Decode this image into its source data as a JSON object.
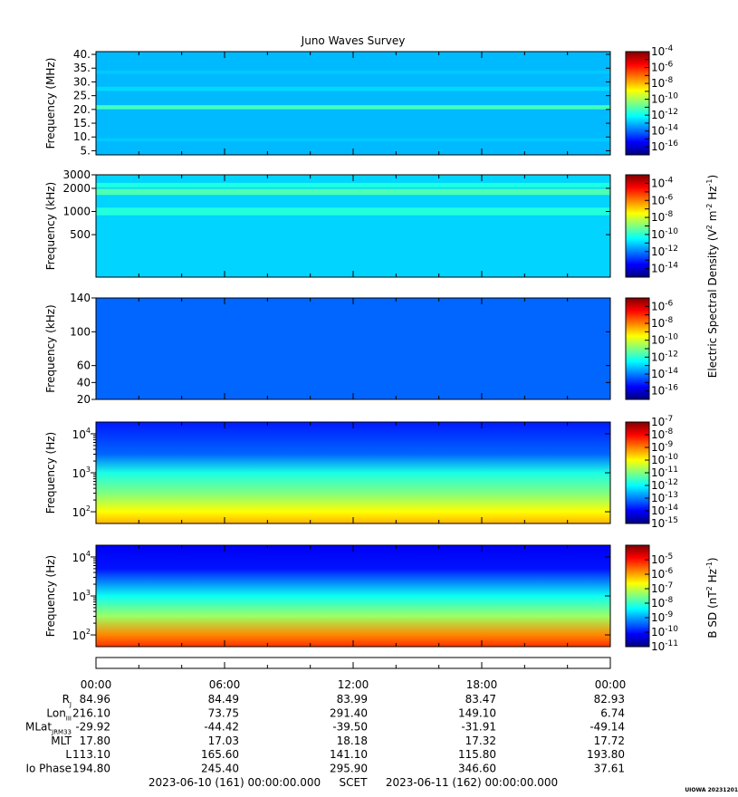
{
  "figure": {
    "title": "Juno Waves Survey",
    "credit": "UIOWA 20231201"
  },
  "chart_data": [
    {
      "type": "heatmap",
      "panel": "1",
      "ylabel": "Frequency (MHz)",
      "ylim": [
        3.5,
        41
      ],
      "yscale": "linear",
      "yticks": [
        5,
        10,
        15,
        20,
        25,
        30,
        35,
        40
      ],
      "ytick_labels": [
        "5.",
        "10.",
        "15.",
        "20.",
        "25.",
        "30.",
        "35.",
        "40."
      ],
      "colorbar": {
        "exponents": [
          -4,
          -6,
          -8,
          -10,
          -12,
          -14,
          -16
        ],
        "cmin": -17,
        "cmax": -4
      },
      "background_log_level": -13,
      "bands": [
        {
          "y": 20.8,
          "width": 1.5,
          "log_level": -11.3
        },
        {
          "y": 27.5,
          "width": 1.5,
          "log_level": -12.6
        },
        {
          "y": 9.0,
          "width": 1.2,
          "log_level": -12.8
        },
        {
          "y": 33.5,
          "width": 1.2,
          "log_level": -12.8
        }
      ]
    },
    {
      "type": "heatmap",
      "panel": "2",
      "ylabel": "Frequency (kHz)",
      "ylim": [
        140,
        3000
      ],
      "yscale": "log",
      "yticks": [
        500,
        1000,
        2000,
        3000
      ],
      "ytick_labels": [
        "500",
        "1000",
        "2000",
        "3000"
      ],
      "colorbar": {
        "exponents": [
          -4,
          -6,
          -8,
          -10,
          -12,
          -14
        ],
        "cmin": -15,
        "cmax": -3
      },
      "background_log_level": -11,
      "bands": [
        {
          "y": 1800,
          "width": 0.04,
          "log_level": -9.6
        },
        {
          "y": 1000,
          "width": 0.05,
          "log_level": -10.1
        },
        {
          "y": 2200,
          "width": 0.03,
          "log_level": -10.2
        }
      ]
    },
    {
      "type": "heatmap",
      "panel": "3",
      "ylabel": "Frequency (kHz)",
      "ylim": [
        20,
        140
      ],
      "yscale": "linear",
      "yticks": [
        20,
        40,
        60,
        100,
        140
      ],
      "ytick_labels": [
        "20",
        "40",
        "60",
        "100",
        "140"
      ],
      "colorbar": {
        "exponents": [
          -6,
          -8,
          -10,
          -12,
          -14,
          -16
        ],
        "cmin": -17,
        "cmax": -5
      },
      "background_log_level": -14.3
    },
    {
      "type": "heatmap",
      "panel": "4",
      "ylabel": "Frequency (Hz)",
      "ylim": [
        50,
        20000
      ],
      "yscale": "log",
      "ytick_labels": [
        {
          "value": 100,
          "base": "10",
          "exp": "2"
        },
        {
          "value": 1000,
          "base": "10",
          "exp": "3"
        },
        {
          "value": 10000,
          "base": "10",
          "exp": "4"
        }
      ],
      "colorbar": {
        "exponents": [
          -7,
          -8,
          -9,
          -10,
          -11,
          -12,
          -13,
          -14,
          -15
        ],
        "cmin": -15,
        "cmax": -7
      },
      "gradient": [
        {
          "f": 20000,
          "log_level": -13.8
        },
        {
          "f": 3000,
          "log_level": -13.2
        },
        {
          "f": 1000,
          "log_level": -11.8
        },
        {
          "f": 300,
          "log_level": -11.0
        },
        {
          "f": 100,
          "log_level": -10.0
        },
        {
          "f": 50,
          "log_level": -9.4
        }
      ]
    },
    {
      "type": "heatmap",
      "panel": "5",
      "ylabel": "Frequency (Hz)",
      "ylim": [
        50,
        20000
      ],
      "yscale": "log",
      "ytick_labels": [
        {
          "value": 100,
          "base": "10",
          "exp": "2"
        },
        {
          "value": 1000,
          "base": "10",
          "exp": "3"
        },
        {
          "value": 10000,
          "base": "10",
          "exp": "4"
        }
      ],
      "colorbar": {
        "label": "B SD (nT",
        "label_exp": "2",
        "label_suffix": " Hz",
        "label_exp2": "-1",
        "label_end": ")",
        "exponents": [
          -5,
          -6,
          -7,
          -8,
          -9,
          -10,
          -11
        ],
        "cmin": -11,
        "cmax": -4
      },
      "gradient": [
        {
          "f": 20000,
          "log_level": -10.2
        },
        {
          "f": 5000,
          "log_level": -10.0
        },
        {
          "f": 1000,
          "log_level": -8.3
        },
        {
          "f": 300,
          "log_level": -7.3
        },
        {
          "f": 100,
          "log_level": -5.8
        },
        {
          "f": 50,
          "log_level": -5.2
        }
      ]
    }
  ],
  "electric_label": {
    "text": "Electric Spectral Density (V",
    "exp1": "2",
    "mid": " m",
    "exp2": "-2",
    "mid2": " Hz",
    "exp3": "-1",
    "end": ")"
  },
  "time_axis": {
    "tick_labels": [
      "00:00",
      "06:00",
      "12:00",
      "18:00",
      "00:00"
    ],
    "hours": [
      0,
      6,
      12,
      18,
      24
    ],
    "minor_step_hours": 2
  },
  "ephemeris": [
    {
      "label": "R",
      "sub": "J",
      "values": [
        "84.96",
        "84.49",
        "83.99",
        "83.47",
        "82.93"
      ]
    },
    {
      "label": "Lon",
      "sub": "III",
      "values": [
        "216.10",
        "73.75",
        "291.40",
        "149.10",
        "6.74"
      ]
    },
    {
      "label": "MLat",
      "sub": "JRM33",
      "values": [
        "-29.92",
        "-44.42",
        "-39.50",
        "-31.91",
        "-49.14"
      ]
    },
    {
      "label": "MLT",
      "sub": "",
      "values": [
        "17.80",
        "17.03",
        "18.18",
        "17.32",
        "17.72"
      ]
    },
    {
      "label": "L",
      "sub": "",
      "values": [
        "113.10",
        "165.60",
        "141.10",
        "115.80",
        "193.80"
      ]
    },
    {
      "label": "Io Phase",
      "sub": "",
      "values": [
        "194.80",
        "245.40",
        "295.90",
        "346.60",
        "37.61"
      ]
    }
  ],
  "time_range": {
    "start": "2023-06-10 (161) 00:00:00.000",
    "frame": "SCET",
    "end": "2023-06-11 (162) 00:00:00.000"
  }
}
